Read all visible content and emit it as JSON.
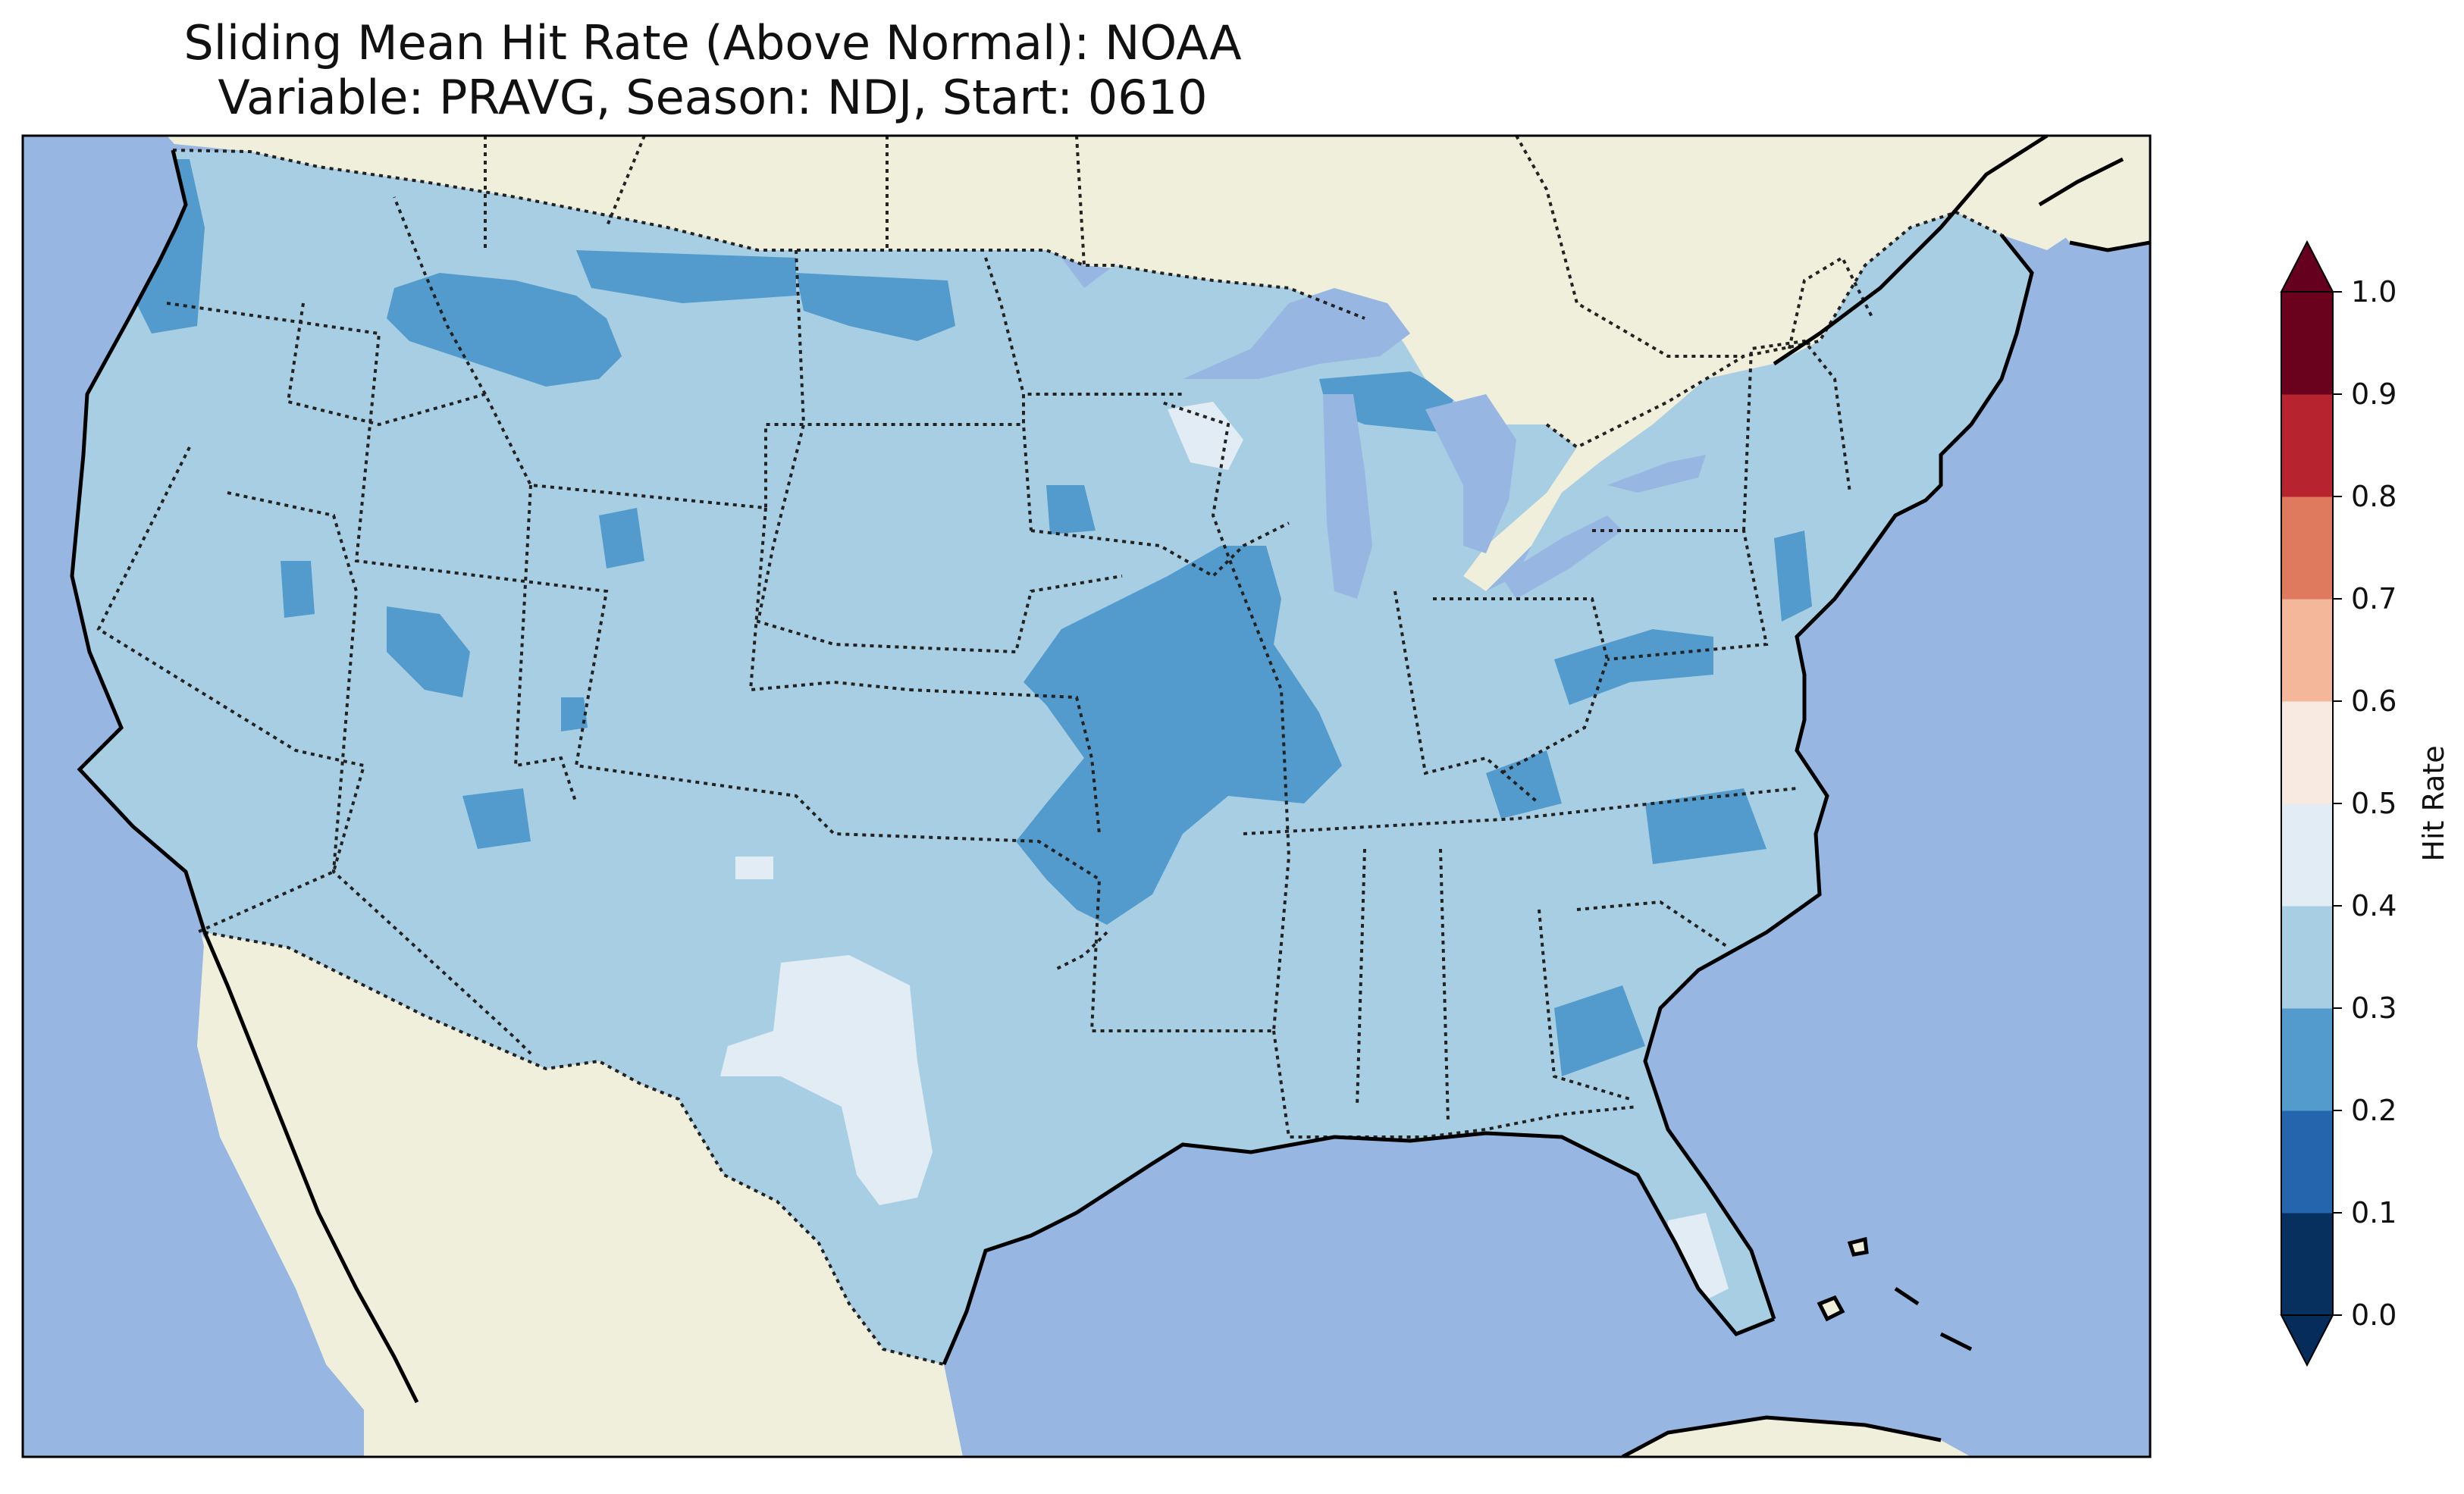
{
  "figure": {
    "title_line_1": "Sliding Mean Hit Rate (Above Normal): NOAA",
    "title_line_2": "Variable: PRAVG, Season: NDJ, Start: 0610"
  },
  "map": {
    "projection": "plate-carree",
    "extent_lon": [
      -125,
      -67
    ],
    "extent_lat": [
      24,
      50
    ],
    "ocean_color": "#97b6e1",
    "land_color": "#efefdb",
    "layers": [
      "coastline",
      "country-borders",
      "state-borders",
      "lakes"
    ],
    "field": {
      "name": "Hit Rate",
      "category": "Above Normal",
      "background_value": 0.35,
      "regions": [
        {
          "label": "Pacific NW coast",
          "value": 0.25
        },
        {
          "label": "Idaho / Montana",
          "value": 0.25
        },
        {
          "label": "Northern Plains border",
          "value": 0.25
        },
        {
          "label": "Wyoming",
          "value": 0.25
        },
        {
          "label": "Nevada",
          "value": 0.25
        },
        {
          "label": "Utah",
          "value": 0.25
        },
        {
          "label": "Arizona",
          "value": 0.25
        },
        {
          "label": "South Dakota",
          "value": 0.25
        },
        {
          "label": "Missouri / Iowa / Arkansas",
          "value": 0.25
        },
        {
          "label": "Great Lakes / Upper Michigan",
          "value": 0.25
        },
        {
          "label": "Ohio Valley",
          "value": 0.25
        },
        {
          "label": "New Jersey",
          "value": 0.25
        },
        {
          "label": "North Carolina",
          "value": 0.25
        },
        {
          "label": "Georgia",
          "value": 0.25
        },
        {
          "label": "Louisiana coast",
          "value": 0.25
        },
        {
          "label": "Wisconsin",
          "value": 0.45
        },
        {
          "label": "West Texas",
          "value": 0.45
        },
        {
          "label": "South Florida",
          "value": 0.45
        },
        {
          "label": "Northeast New Mexico",
          "value": 0.45
        }
      ]
    }
  },
  "colorbar": {
    "label": "Hit Rate",
    "min": 0.0,
    "max": 1.0,
    "extend": "both",
    "ticks": [
      "0.0",
      "0.1",
      "0.2",
      "0.3",
      "0.4",
      "0.5",
      "0.6",
      "0.7",
      "0.8",
      "0.9",
      "1.0"
    ],
    "colors": [
      "#053061",
      "#2166ac",
      "#4393c3",
      "#92c5de",
      "#d1e5f0",
      "#f7f7f7",
      "#fddbc7",
      "#f4a582",
      "#d6604d",
      "#b2182b",
      "#67001f"
    ],
    "rendered_colors": [
      "#07305f",
      "#2465ae",
      "#529bcc",
      "#a8cee3",
      "#e2ecf4",
      "#f8e9e1",
      "#f5b799",
      "#e07a5f",
      "#b7232f",
      "#6a021e"
    ],
    "under_color": "#052c5a",
    "over_color": "#65001e"
  }
}
